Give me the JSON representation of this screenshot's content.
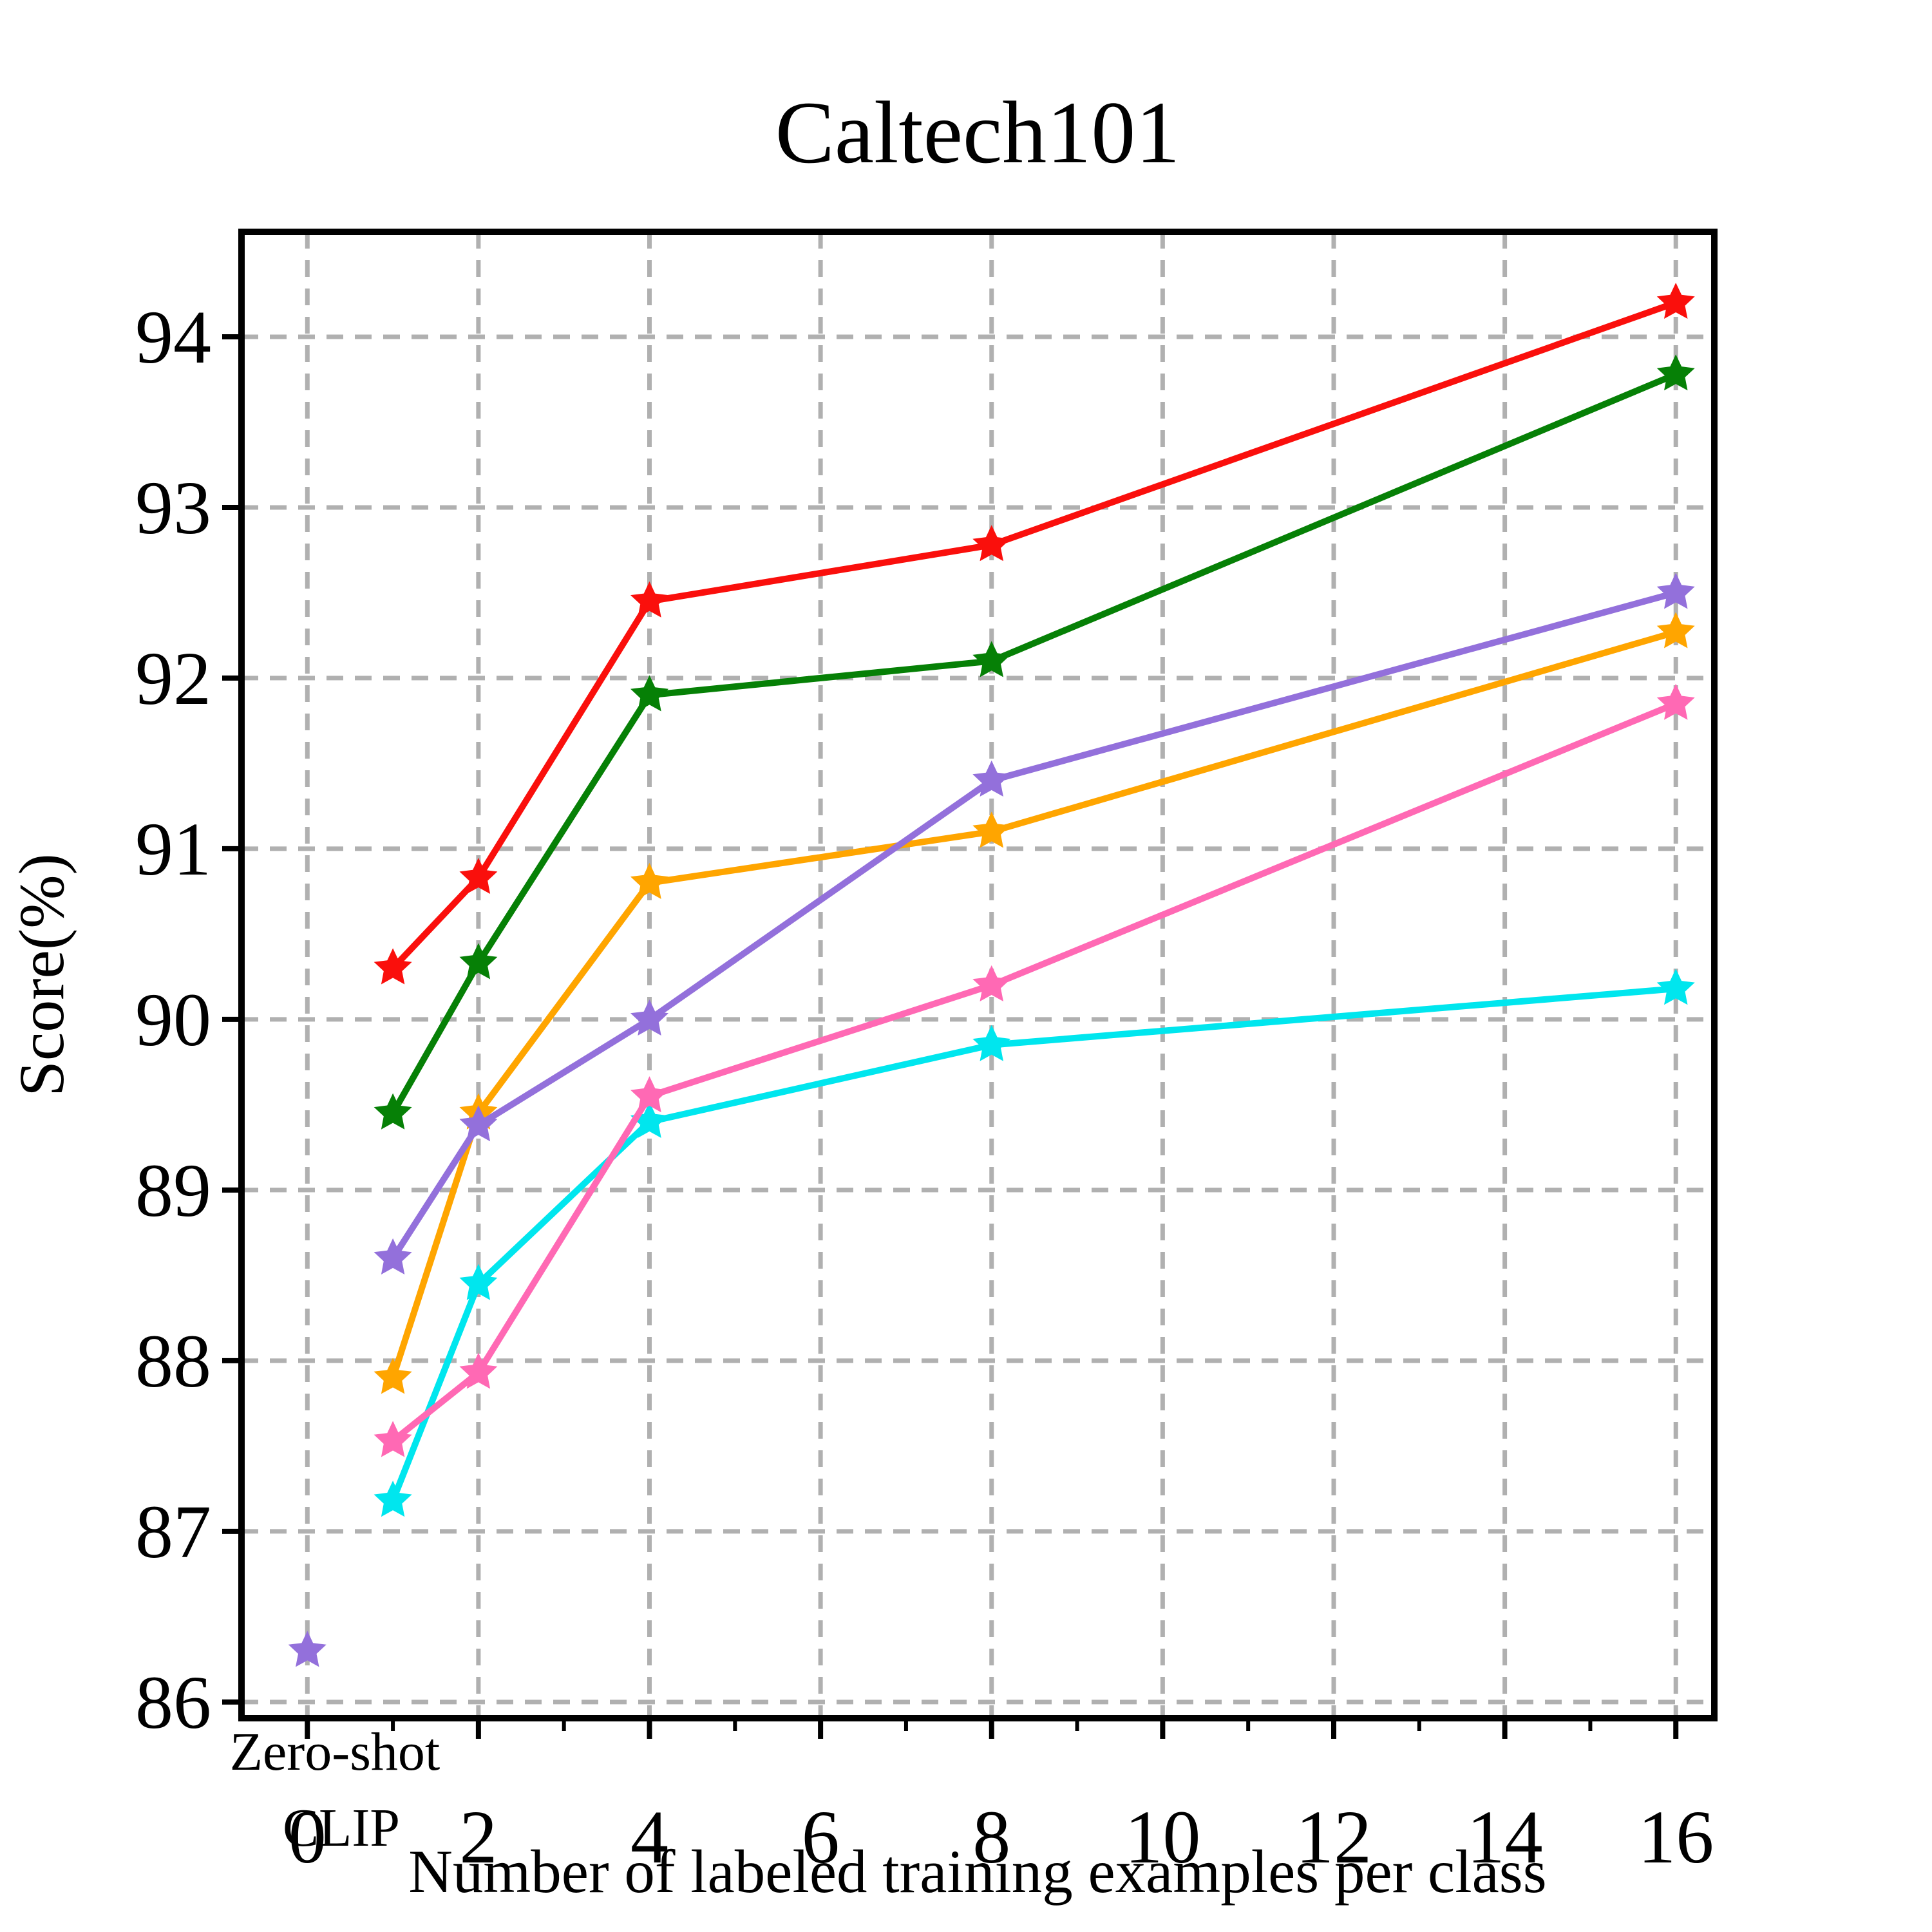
{
  "chart_data": {
    "type": "line",
    "title": "Caltech101",
    "xlabel": "Number of labeled training examples per class",
    "ylabel": "Score(%)",
    "x_ticks": [
      0,
      2,
      4,
      6,
      8,
      10,
      12,
      14,
      16
    ],
    "x_tick_labels": [
      "0",
      "2",
      "4",
      "6",
      "8",
      "10",
      "12",
      "14",
      "16"
    ],
    "x_minor_ticks": [
      1,
      3,
      5,
      7,
      9,
      11,
      13,
      15
    ],
    "y_ticks": [
      86,
      87,
      88,
      89,
      90,
      91,
      92,
      93,
      94
    ],
    "y_tick_labels": [
      "86",
      "87",
      "88",
      "89",
      "90",
      "91",
      "92",
      "93",
      "94"
    ],
    "xlim": [
      -0.77,
      16.45
    ],
    "ylim": [
      85.905,
      94.615
    ],
    "grid": true,
    "grid_color": "#b0b0b0",
    "axis_color": "#000000",
    "x": [
      1,
      2,
      4,
      8,
      16
    ],
    "series": [
      {
        "name": "series-cyan",
        "color": "#00e6ee",
        "values": [
          87.18,
          88.45,
          89.4,
          89.85,
          90.18
        ]
      },
      {
        "name": "series-pink",
        "color": "#ff69b4",
        "values": [
          87.53,
          87.93,
          89.55,
          90.2,
          91.85
        ]
      },
      {
        "name": "series-orange",
        "color": "#ffa500",
        "values": [
          87.9,
          89.45,
          90.8,
          91.1,
          92.27
        ]
      },
      {
        "name": "series-purple",
        "color": "#9370db",
        "values": [
          88.6,
          89.38,
          90.0,
          91.4,
          92.5
        ]
      },
      {
        "name": "series-green",
        "color": "#068006",
        "values": [
          89.45,
          90.33,
          91.9,
          92.1,
          93.78
        ]
      },
      {
        "name": "series-red",
        "color": "#fa0f0c",
        "values": [
          90.3,
          90.83,
          92.45,
          92.78,
          94.2
        ]
      }
    ],
    "zero_shot": {
      "label_line1": "Zero-shot",
      "label_line2": "CLIP",
      "color": "#9370db",
      "x": 0,
      "y": 86.3
    }
  }
}
